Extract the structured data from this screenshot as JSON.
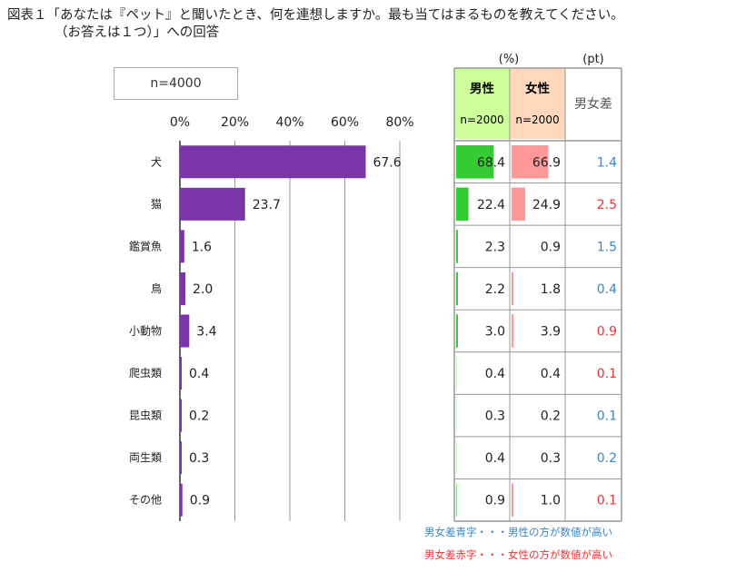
{
  "title_line1": "図表１「あなたは『ペット』と聞いたとき、何を連想しますか。最も当てはまるものを教えてください。",
  "title_line2": "（お答えは１つ）」への回答",
  "sample_label": "n=4000",
  "table_headers": {
    "pct_unit": "(%)",
    "pt_unit": "(pt)",
    "male": "男性",
    "male_n": "n=2000",
    "female": "女性",
    "female_n": "n=2000",
    "diff": "男女差"
  },
  "notes": {
    "blue": "男女差青字・・・男性の方が数値が高い",
    "red": "男女差赤字・・・女性の方が数値が高い"
  },
  "colors": {
    "bar": "#7a35a8",
    "male_header": "#ccff99",
    "female_header": "#ffd7bc",
    "male_bar": "#33cc33",
    "female_bar": "#ff9999",
    "blue": "#3b86c6",
    "red": "#ee3333"
  },
  "chart_data": {
    "type": "bar",
    "orientation": "horizontal",
    "categories": [
      "犬",
      "猫",
      "鑑賞魚",
      "鳥",
      "小動物",
      "爬虫類",
      "昆虫類",
      "両生類",
      "その他"
    ],
    "values": [
      67.6,
      23.7,
      1.6,
      2.0,
      3.4,
      0.4,
      0.2,
      0.3,
      0.9
    ],
    "value_labels": [
      "67.6",
      "23.7",
      "1.6",
      "2.0",
      "3.4",
      "0.4",
      "0.2",
      "0.3",
      "0.9"
    ],
    "xlim": [
      0,
      80
    ],
    "ticks": [
      0,
      20,
      40,
      60,
      80
    ],
    "tick_labels": [
      "0%",
      "20%",
      "40%",
      "60%",
      "80%"
    ],
    "grid": true,
    "male": [
      "68.4",
      "22.4",
      "2.3",
      "2.2",
      "3.0",
      "0.4",
      "0.3",
      "0.4",
      "0.9"
    ],
    "female": [
      "66.9",
      "24.9",
      "0.9",
      "1.8",
      "3.9",
      "0.4",
      "0.2",
      "0.3",
      "1.0"
    ],
    "diff": [
      "1.4",
      "2.5",
      "1.5",
      "0.4",
      "0.9",
      "0.1",
      "0.1",
      "0.2",
      "0.1"
    ],
    "diff_higher": [
      "male",
      "female",
      "male",
      "male",
      "female",
      "female",
      "male",
      "male",
      "female"
    ]
  }
}
